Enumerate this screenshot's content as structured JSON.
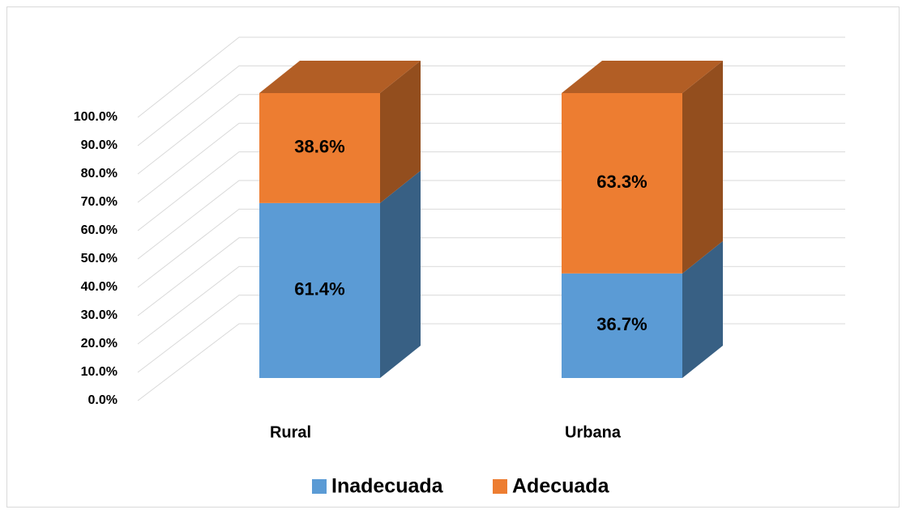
{
  "chart_data": {
    "type": "bar3d_stacked",
    "categories": [
      "Rural",
      "Urbana"
    ],
    "series": [
      {
        "name": "Inadecuada",
        "color": "#5b9bd5",
        "values": [
          61.4,
          36.7
        ],
        "value_labels": [
          "61.4%",
          "36.7%"
        ]
      },
      {
        "name": "Adecuada",
        "color": "#ed7d31",
        "values": [
          38.6,
          63.3
        ],
        "value_labels": [
          "38.6%",
          "63.3%"
        ]
      }
    ],
    "ylim": [
      0,
      100
    ],
    "yticks": [
      {
        "value": 0,
        "label": "0.0%"
      },
      {
        "value": 10,
        "label": "10.0%"
      },
      {
        "value": 20,
        "label": "20.0%"
      },
      {
        "value": 30,
        "label": "30.0%"
      },
      {
        "value": 40,
        "label": "40.0%"
      },
      {
        "value": 50,
        "label": "50.0%"
      },
      {
        "value": 60,
        "label": "60.0%"
      },
      {
        "value": 70,
        "label": "70.0%"
      },
      {
        "value": 80,
        "label": "80.0%"
      },
      {
        "value": 90,
        "label": "90.0%"
      },
      {
        "value": 100,
        "label": "100.0%"
      }
    ],
    "grid": true,
    "legend": "bottom"
  }
}
